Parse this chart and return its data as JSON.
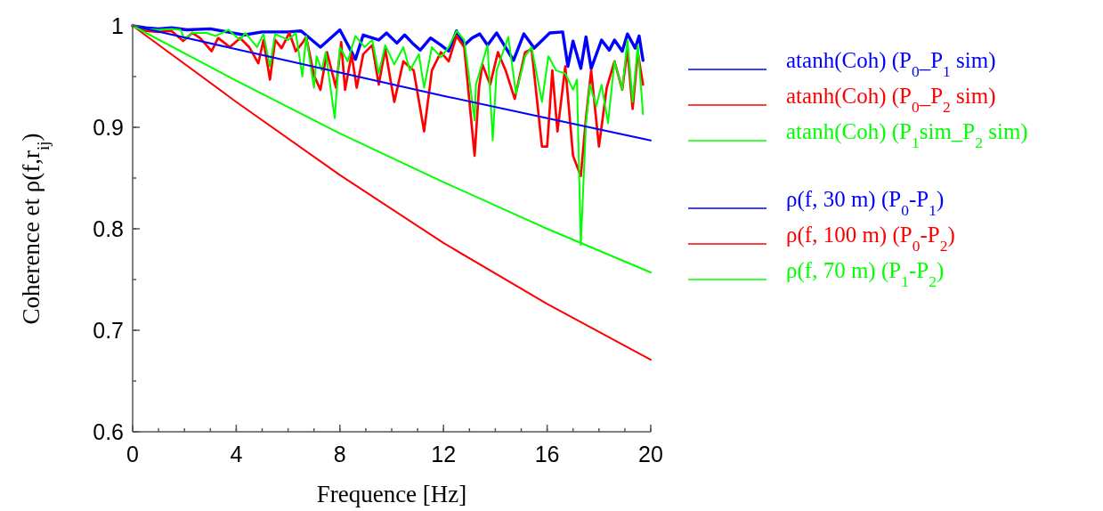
{
  "chart_data": {
    "type": "line",
    "xlabel": "Frequence [Hz]",
    "ylabel": "Coherence et ρ(f,r$_{ij}$)",
    "xlim": [
      0,
      20
    ],
    "ylim": [
      0.6,
      1
    ],
    "xticks": [
      0,
      4,
      8,
      12,
      16,
      20
    ],
    "yticks": [
      0.6,
      0.7,
      0.8,
      0.9,
      {
        "value": 1,
        "label": "1"
      }
    ],
    "legend": "right",
    "grid": false,
    "line_style": "solid",
    "series": [
      {
        "name": "atanh(Coh) (P$_{0}$_P$_{1}$ sim)",
        "color": "#0000ff",
        "x": [
          0,
          0.5,
          1,
          1.5,
          2.1,
          3,
          4.3,
          5,
          6,
          6.5,
          7.25,
          8,
          8.6,
          8.9,
          9.5,
          9.8,
          10.2,
          10.5,
          10.8,
          11.1,
          11.5,
          11.9,
          12.2,
          12.5,
          12.8,
          13.1,
          13.4,
          13.7,
          14.05,
          14.7,
          15.1,
          15.5,
          16.1,
          16.6,
          16.8,
          17,
          17.3,
          17.5,
          17.7,
          18.1,
          18.4,
          18.6,
          18.9,
          19.1,
          19.4,
          19.55,
          19.7
        ],
        "values": [
          1,
          0.998,
          0.997,
          0.998,
          0.996,
          0.997,
          0.991,
          0.994,
          0.994,
          0.995,
          0.979,
          0.996,
          0.967,
          0.991,
          0.986,
          0.993,
          0.983,
          0.991,
          0.983,
          0.976,
          0.988,
          0.981,
          0.975,
          0.995,
          0.981,
          0.988,
          0.992,
          0.981,
          0.993,
          0.966,
          0.992,
          0.978,
          0.993,
          0.994,
          0.96,
          0.985,
          0.958,
          0.989,
          0.958,
          0.986,
          0.976,
          0.986,
          0.975,
          0.992,
          0.978,
          0.99,
          0.966
        ]
      },
      {
        "name": "atanh(Coh) (P$_{0}$_P$_{2}$ sim)",
        "color": "#ff0000",
        "x": [
          0,
          0.5,
          1,
          1.5,
          1.95,
          2.3,
          2.6,
          3.05,
          3.3,
          3.75,
          4.15,
          4.5,
          4.85,
          5.05,
          5.3,
          5.5,
          5.75,
          6.05,
          6.3,
          6.55,
          6.7,
          7,
          7.25,
          7.5,
          7.85,
          8.05,
          8.2,
          8.45,
          8.65,
          8.9,
          9.25,
          9.5,
          9.75,
          10.1,
          10.45,
          10.85,
          11.25,
          11.55,
          11.9,
          12.2,
          12.5,
          12.8,
          13.2,
          13.37,
          13.5,
          13.8,
          14.1,
          14.4,
          14.75,
          15.15,
          15.4,
          15.8,
          16,
          16.2,
          16.4,
          16.7,
          17,
          17.3,
          17.5,
          17.7,
          18,
          18.3,
          18.6,
          18.9,
          19.1,
          19.3,
          19.5,
          19.7
        ],
        "values": [
          1,
          0.995,
          0.994,
          0.995,
          0.985,
          0.993,
          0.988,
          0.975,
          0.988,
          0.979,
          0.988,
          0.979,
          0.963,
          0.986,
          0.947,
          0.986,
          0.978,
          0.993,
          0.975,
          0.983,
          0.989,
          0.951,
          0.937,
          0.974,
          0.939,
          0.984,
          0.937,
          0.972,
          0.939,
          0.972,
          0.981,
          0.942,
          0.977,
          0.925,
          0.965,
          0.956,
          0.896,
          0.956,
          0.974,
          0.965,
          0.99,
          0.979,
          0.872,
          0.939,
          0.962,
          0.942,
          0.974,
          0.956,
          0.928,
          0.974,
          0.977,
          0.881,
          0.881,
          0.956,
          0.896,
          0.96,
          0.872,
          0.852,
          0.909,
          0.956,
          0.881,
          0.939,
          0.965,
          0.937,
          0.977,
          0.918,
          0.974,
          0.942
        ]
      },
      {
        "name": "atanh(Coh) (P$_{1}$sim_P$_{2}$ sim)",
        "color": "#00ff00",
        "x": [
          0,
          0.5,
          1,
          1.5,
          1.85,
          2,
          2.3,
          2.85,
          3.2,
          3.7,
          4.15,
          4.35,
          4.8,
          5.05,
          5.3,
          5.5,
          6,
          6.3,
          6.55,
          6.7,
          7,
          7.1,
          7.3,
          7.45,
          7.8,
          8,
          8.3,
          8.6,
          8.95,
          9.25,
          9.5,
          9.75,
          10.1,
          10.45,
          10.7,
          11.05,
          11.25,
          11.55,
          11.9,
          12.2,
          12.5,
          12.8,
          13.2,
          13.25,
          13.4,
          13.7,
          13.9,
          14.05,
          14.5,
          14.8,
          15.15,
          15.4,
          15.8,
          16.05,
          16.35,
          16.7,
          17,
          17.15,
          17.3,
          17.5,
          17.65,
          17.9,
          18.1,
          18.35,
          18.6,
          18.9,
          19.1,
          19.3,
          19.5,
          19.7
        ],
        "values": [
          1,
          0.997,
          0.996,
          0.997,
          0.996,
          0.987,
          0.993,
          0.993,
          0.99,
          0.996,
          0.986,
          0.993,
          0.979,
          0.992,
          0.96,
          0.992,
          0.986,
          0.993,
          0.95,
          0.99,
          0.939,
          0.97,
          0.956,
          0.974,
          0.909,
          0.979,
          0.965,
          0.99,
          0.979,
          0.986,
          0.953,
          0.981,
          0.962,
          0.979,
          0.956,
          0.972,
          0.939,
          0.979,
          0.969,
          0.979,
          0.995,
          0.986,
          0.907,
          0.942,
          0.955,
          0.981,
          0.887,
          0.956,
          0.989,
          0.933,
          0.97,
          0.979,
          0.925,
          0.97,
          0.956,
          0.953,
          0.937,
          0.947,
          0.784,
          0.904,
          0.942,
          0.921,
          0.942,
          0.904,
          0.965,
          0.937,
          0.986,
          0.925,
          0.981,
          0.913
        ]
      },
      {
        "name": "ρ(f, 30 m) (P$_{0}$-P$_{1}$)",
        "color": "#0000ff",
        "x": [
          0,
          4,
          8,
          12,
          16,
          20
        ],
        "values": [
          1,
          0.977,
          0.954,
          0.931,
          0.909,
          0.887
        ]
      },
      {
        "name": "ρ(f, 100 m) (P$_{0}$-P$_{2}$)",
        "color": "#ff0000",
        "x": [
          0,
          4,
          8,
          12,
          16,
          20
        ],
        "values": [
          1,
          0.925,
          0.853,
          0.786,
          0.726,
          0.671
        ]
      },
      {
        "name": "ρ(f, 70 m) (P$_{1}$-P$_{2}$)",
        "color": "#00ff00",
        "x": [
          0,
          4,
          8,
          12,
          16,
          20
        ],
        "values": [
          1,
          0.946,
          0.894,
          0.846,
          0.8,
          0.757
        ]
      }
    ]
  }
}
